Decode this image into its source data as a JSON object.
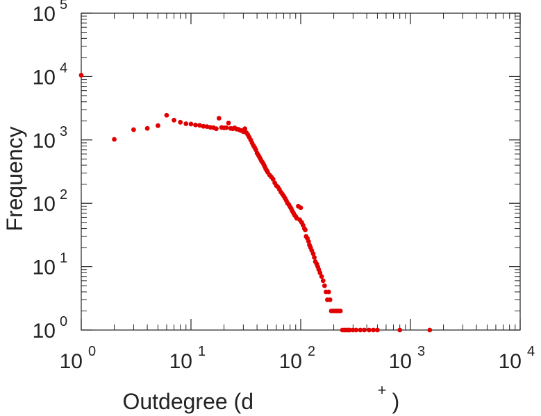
{
  "chart_data": {
    "type": "scatter",
    "title": "",
    "xlabel": "Outdegree (d",
    "xlabel_sup": "+",
    "xlabel_close": ")",
    "ylabel": "Frequency",
    "xscale": "log",
    "yscale": "log",
    "xlim": [
      1,
      10000
    ],
    "ylim": [
      1,
      100000
    ],
    "grid": false,
    "legend": "none",
    "marker_color": "#e00000",
    "x_ticks": [
      {
        "base": "10",
        "exp": "0"
      },
      {
        "base": "10",
        "exp": "1"
      },
      {
        "base": "10",
        "exp": "2"
      },
      {
        "base": "10",
        "exp": "3"
      },
      {
        "base": "10",
        "exp": "4"
      }
    ],
    "y_ticks": [
      {
        "base": "10",
        "exp": "0"
      },
      {
        "base": "10",
        "exp": "1"
      },
      {
        "base": "10",
        "exp": "2"
      },
      {
        "base": "10",
        "exp": "3"
      },
      {
        "base": "10",
        "exp": "4"
      },
      {
        "base": "10",
        "exp": "5"
      }
    ],
    "points": [
      [
        1,
        10500
      ],
      [
        2,
        1020
      ],
      [
        3,
        1450
      ],
      [
        4,
        1520
      ],
      [
        5,
        1680
      ],
      [
        6,
        2450
      ],
      [
        7,
        2050
      ],
      [
        8,
        1900
      ],
      [
        9,
        1800
      ],
      [
        10,
        1780
      ],
      [
        11,
        1720
      ],
      [
        12,
        1700
      ],
      [
        13,
        1640
      ],
      [
        14,
        1620
      ],
      [
        15,
        1580
      ],
      [
        16,
        1560
      ],
      [
        17,
        1500
      ],
      [
        18,
        2200
      ],
      [
        19,
        1570
      ],
      [
        20,
        1550
      ],
      [
        21,
        1560
      ],
      [
        22,
        1850
      ],
      [
        23,
        1520
      ],
      [
        24,
        1500
      ],
      [
        25,
        1550
      ],
      [
        26,
        1480
      ],
      [
        27,
        1470
      ],
      [
        28,
        1420
      ],
      [
        29,
        1400
      ],
      [
        30,
        1350
      ],
      [
        31,
        1500
      ],
      [
        32,
        1300
      ],
      [
        33,
        1200
      ],
      [
        34,
        1100
      ],
      [
        35,
        1000
      ],
      [
        36,
        900
      ],
      [
        37,
        820
      ],
      [
        38,
        760
      ],
      [
        39,
        700
      ],
      [
        40,
        620
      ],
      [
        41,
        580
      ],
      [
        42,
        540
      ],
      [
        43,
        500
      ],
      [
        44,
        460
      ],
      [
        45,
        440
      ],
      [
        46,
        410
      ],
      [
        47,
        380
      ],
      [
        48,
        350
      ],
      [
        49,
        330
      ],
      [
        50,
        310
      ],
      [
        52,
        280
      ],
      [
        54,
        260
      ],
      [
        56,
        240
      ],
      [
        58,
        210
      ],
      [
        60,
        190
      ],
      [
        62,
        180
      ],
      [
        64,
        165
      ],
      [
        66,
        150
      ],
      [
        68,
        140
      ],
      [
        70,
        130
      ],
      [
        72,
        120
      ],
      [
        74,
        110
      ],
      [
        76,
        100
      ],
      [
        78,
        95
      ],
      [
        80,
        88
      ],
      [
        82,
        82
      ],
      [
        84,
        75
      ],
      [
        86,
        70
      ],
      [
        88,
        65
      ],
      [
        90,
        62
      ],
      [
        92,
        58
      ],
      [
        95,
        90
      ],
      [
        98,
        55
      ],
      [
        100,
        85
      ],
      [
        102,
        50
      ],
      [
        105,
        45
      ],
      [
        108,
        40
      ],
      [
        110,
        38
      ],
      [
        112,
        30
      ],
      [
        115,
        28
      ],
      [
        118,
        25
      ],
      [
        120,
        22
      ],
      [
        123,
        20
      ],
      [
        126,
        18
      ],
      [
        130,
        16
      ],
      [
        133,
        14
      ],
      [
        136,
        12
      ],
      [
        140,
        11
      ],
      [
        143,
        10
      ],
      [
        146,
        9
      ],
      [
        150,
        8
      ],
      [
        155,
        7
      ],
      [
        160,
        6
      ],
      [
        165,
        5
      ],
      [
        170,
        4
      ],
      [
        175,
        3
      ],
      [
        180,
        4
      ],
      [
        185,
        3
      ],
      [
        190,
        2
      ],
      [
        200,
        2
      ],
      [
        210,
        2
      ],
      [
        220,
        2
      ],
      [
        230,
        2
      ],
      [
        240,
        1
      ],
      [
        250,
        1
      ],
      [
        260,
        1
      ],
      [
        270,
        1
      ],
      [
        280,
        1
      ],
      [
        300,
        1
      ],
      [
        320,
        1
      ],
      [
        350,
        1
      ],
      [
        380,
        1
      ],
      [
        420,
        1
      ],
      [
        460,
        1
      ],
      [
        500,
        1
      ],
      [
        800,
        1
      ],
      [
        1500,
        1
      ]
    ]
  }
}
